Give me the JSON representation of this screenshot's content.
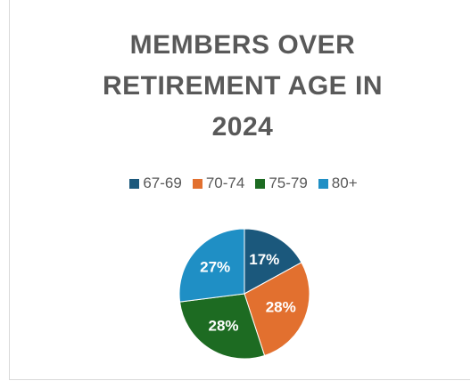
{
  "chart_data": {
    "type": "pie",
    "title": "MEMBERS OVER RETIREMENT AGE IN 2024",
    "categories": [
      "67-69",
      "70-74",
      "75-79",
      "80+"
    ],
    "values": [
      17,
      28,
      28,
      27
    ],
    "value_labels": [
      "17%",
      "28%",
      "28%",
      "27%"
    ],
    "colors": [
      "#1b587c",
      "#e2702f",
      "#1d6b22",
      "#1f8fc5"
    ],
    "legend": "top"
  }
}
